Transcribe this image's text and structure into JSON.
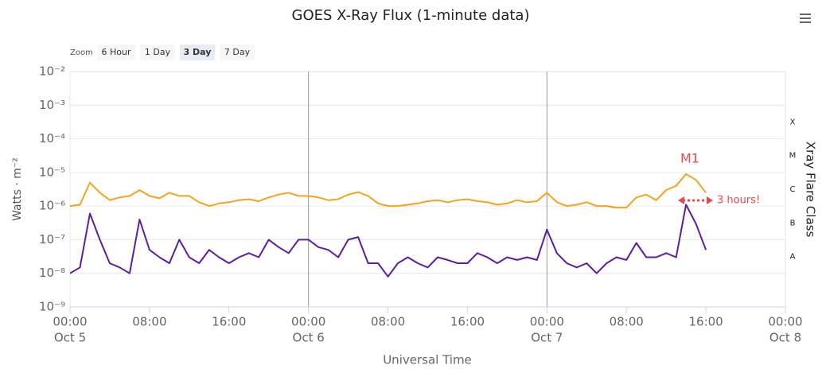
{
  "chart_data": {
    "type": "line",
    "title": "GOES X-Ray Flux (1-minute data)",
    "y_label": "Watts · m⁻²",
    "x_label": "Universal Time",
    "y2_label": "Xray Flare Class",
    "log_scale": true,
    "grid": true,
    "range_selector": {
      "label": "Zoom",
      "buttons": [
        "6 Hour",
        "1 Day",
        "3 Day",
        "7 Day"
      ],
      "selected": 2
    },
    "annotations": [
      "M1",
      "3 hours!"
    ],
    "xlim": [
      "Oct 5 00:00",
      "Oct 8 00:00"
    ],
    "xticks": [
      {
        "value": "Oct 5 00:00",
        "label": [
          "00:00",
          "Oct 5"
        ]
      },
      {
        "value": "Oct 5 08:00",
        "label": [
          "08:00"
        ]
      },
      {
        "value": "Oct 5 16:00",
        "label": [
          "16:00"
        ]
      },
      {
        "value": "Oct 6 00:00",
        "label": [
          "00:00",
          "Oct 6"
        ]
      },
      {
        "value": "Oct 6 08:00",
        "label": [
          "08:00"
        ]
      },
      {
        "value": "Oct 6 16:00",
        "label": [
          "16:00"
        ]
      },
      {
        "value": "Oct 7 00:00",
        "label": [
          "00:00",
          "Oct 7"
        ]
      },
      {
        "value": "Oct 7 08:00",
        "label": [
          "08:00"
        ]
      },
      {
        "value": "Oct 7 16:00",
        "label": [
          "16:00"
        ]
      },
      {
        "value": "Oct 8 00:00",
        "label": [
          "00:00",
          "Oct 8"
        ]
      }
    ],
    "ylim": [
      1e-09,
      0.01
    ],
    "yticks": [
      {
        "value": 1e-09,
        "label": "10⁻⁹"
      },
      {
        "value": 1e-08,
        "label": "10⁻⁸"
      },
      {
        "value": 1e-07,
        "label": "10⁻⁷"
      },
      {
        "value": 1e-06,
        "label": "10⁻⁶"
      },
      {
        "value": 1e-05,
        "label": "10⁻⁵"
      },
      {
        "value": 0.0001,
        "label": "10⁻⁴"
      },
      {
        "value": 0.001,
        "label": "10⁻³"
      },
      {
        "value": 0.01,
        "label": "10⁻²"
      }
    ],
    "y2lim": [
      1e-09,
      0.01
    ],
    "y2ticks": [
      {
        "value": 1e-08,
        "label": "A"
      },
      {
        "value": 1e-07,
        "label": "B"
      },
      {
        "value": 1e-06,
        "label": "C"
      },
      {
        "value": 1e-05,
        "label": "M"
      },
      {
        "value": 0.0001,
        "label": "X"
      }
    ],
    "x": [
      "Oct 5 00:00",
      "Oct 5 01:00",
      "Oct 5 02:00",
      "Oct 5 03:00",
      "Oct 5 04:00",
      "Oct 5 05:00",
      "Oct 5 06:00",
      "Oct 5 07:00",
      "Oct 5 08:00",
      "Oct 5 09:00",
      "Oct 5 10:00",
      "Oct 5 11:00",
      "Oct 5 12:00",
      "Oct 5 13:00",
      "Oct 5 14:00",
      "Oct 5 15:00",
      "Oct 5 16:00",
      "Oct 5 17:00",
      "Oct 5 18:00",
      "Oct 5 19:00",
      "Oct 5 20:00",
      "Oct 5 21:00",
      "Oct 5 22:00",
      "Oct 5 23:00",
      "Oct 6 00:00",
      "Oct 6 01:00",
      "Oct 6 02:00",
      "Oct 6 03:00",
      "Oct 6 04:00",
      "Oct 6 05:00",
      "Oct 6 06:00",
      "Oct 6 07:00",
      "Oct 6 08:00",
      "Oct 6 09:00",
      "Oct 6 10:00",
      "Oct 6 11:00",
      "Oct 6 12:00",
      "Oct 6 13:00",
      "Oct 6 14:00",
      "Oct 6 15:00",
      "Oct 6 16:00",
      "Oct 6 17:00",
      "Oct 6 18:00",
      "Oct 6 19:00",
      "Oct 6 20:00",
      "Oct 6 21:00",
      "Oct 6 22:00",
      "Oct 6 23:00",
      "Oct 7 00:00",
      "Oct 7 01:00",
      "Oct 7 02:00",
      "Oct 7 03:00",
      "Oct 7 04:00",
      "Oct 7 05:00",
      "Oct 7 06:00",
      "Oct 7 07:00",
      "Oct 7 08:00",
      "Oct 7 09:00",
      "Oct 7 10:00",
      "Oct 7 11:00",
      "Oct 7 12:00",
      "Oct 7 13:00",
      "Oct 7 14:00",
      "Oct 7 15:00",
      "Oct 7 16:00"
    ],
    "series": [
      {
        "color": "#f7a21b",
        "values": [
          1e-06,
          1.1e-06,
          5e-06,
          2.5e-06,
          1.5e-06,
          1.8e-06,
          2e-06,
          3e-06,
          2e-06,
          1.7e-06,
          2.5e-06,
          2e-06,
          2e-06,
          1.3e-06,
          1e-06,
          1.2e-06,
          1.3e-06,
          1.5e-06,
          1.6e-06,
          1.4e-06,
          1.8e-06,
          2.2e-06,
          2.5e-06,
          2e-06,
          2e-06,
          1.8e-06,
          1.5e-06,
          1.6e-06,
          2.2e-06,
          2.6e-06,
          2e-06,
          1.2e-06,
          1e-06,
          1e-06,
          1.1e-06,
          1.2e-06,
          1.4e-06,
          1.5e-06,
          1.3e-06,
          1.5e-06,
          1.6e-06,
          1.4e-06,
          1.3e-06,
          1.1e-06,
          1.2e-06,
          1.5e-06,
          1.3e-06,
          1.4e-06,
          2.5e-06,
          1.3e-06,
          1e-06,
          1.1e-06,
          1.3e-06,
          1e-06,
          1e-06,
          9e-07,
          9e-07,
          1.8e-06,
          2.2e-06,
          1.5e-06,
          3e-06,
          4e-06,
          9e-06,
          6e-06,
          2.5e-06
        ]
      },
      {
        "color": "#5a1fa0",
        "values": [
          1e-08,
          1.5e-08,
          6e-07,
          1e-07,
          2e-08,
          1.5e-08,
          1e-08,
          4e-07,
          5e-08,
          3e-08,
          2e-08,
          1e-07,
          3e-08,
          2e-08,
          5e-08,
          3e-08,
          2e-08,
          3e-08,
          4e-08,
          3e-08,
          1e-07,
          6e-08,
          4e-08,
          1e-07,
          1e-07,
          6e-08,
          5e-08,
          3e-08,
          1e-07,
          1.2e-07,
          2e-08,
          2e-08,
          8e-09,
          2e-08,
          3e-08,
          2e-08,
          1.5e-08,
          3e-08,
          2.5e-08,
          2e-08,
          2e-08,
          4e-08,
          3e-08,
          2e-08,
          3e-08,
          2.5e-08,
          3e-08,
          2.5e-08,
          2e-07,
          4e-08,
          2e-08,
          1.5e-08,
          2e-08,
          1e-08,
          2e-08,
          3e-08,
          2.5e-08,
          8e-08,
          3e-08,
          3e-08,
          4e-08,
          3e-08,
          1.1e-06,
          3e-07,
          5e-08
        ]
      }
    ]
  }
}
